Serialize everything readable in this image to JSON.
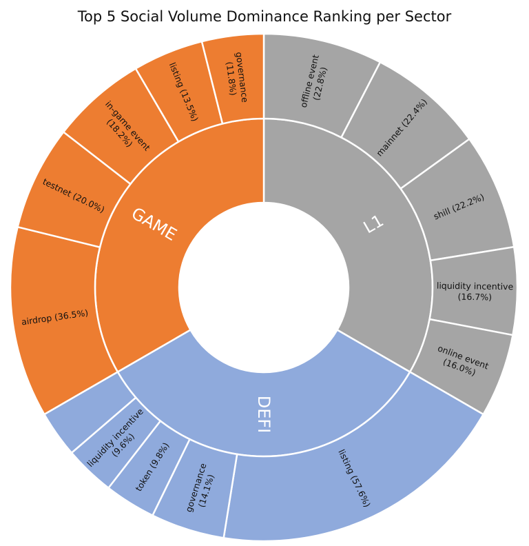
{
  "chart_data": {
    "type": "sunburst",
    "title": "Top 5 Social Volume Dominance Ranking per Sector",
    "sectors": [
      {
        "name": "L1",
        "color": "#a5a5a5",
        "items": [
          {
            "label": "offline event",
            "value_text": "(22.8%)",
            "value": 22.8
          },
          {
            "label": "mainnet",
            "value_text": "(22.4%)",
            "value": 22.4
          },
          {
            "label": "shill",
            "value_text": "(22.2%)",
            "value": 22.2
          },
          {
            "label": "liquidity incentive",
            "value_text": "(16.7%)",
            "value": 16.7
          },
          {
            "label": "online event",
            "value_text": "(16.0%)",
            "value": 16.0
          }
        ]
      },
      {
        "name": "DEFI",
        "color": "#8faadc",
        "items": [
          {
            "label": "listing",
            "value_text": "(57.6%)",
            "value": 57.6
          },
          {
            "label": "governance",
            "value_text": "(14.1%)",
            "value": 14.1
          },
          {
            "label": "token",
            "value_text": "(9.8%)",
            "value": 9.8
          },
          {
            "label": "liquidity incentive",
            "value_text": "(9.6%)",
            "value": 9.6
          },
          {
            "label": "",
            "value_text": "",
            "value": 8.9
          }
        ]
      },
      {
        "name": "GAME",
        "color": "#ed7d31",
        "items": [
          {
            "label": "airdrop",
            "value_text": "(36.5%)",
            "value": 36.5
          },
          {
            "label": "testnet",
            "value_text": "(20.0%)",
            "value": 20.0
          },
          {
            "label": "in-game event",
            "value_text": "(18.2%)",
            "value": 18.2
          },
          {
            "label": "listing",
            "value_text": "(13.5%)",
            "value": 13.5
          },
          {
            "label": "governance",
            "value_text": "(11.8%)",
            "value": 11.8
          }
        ]
      }
    ]
  }
}
